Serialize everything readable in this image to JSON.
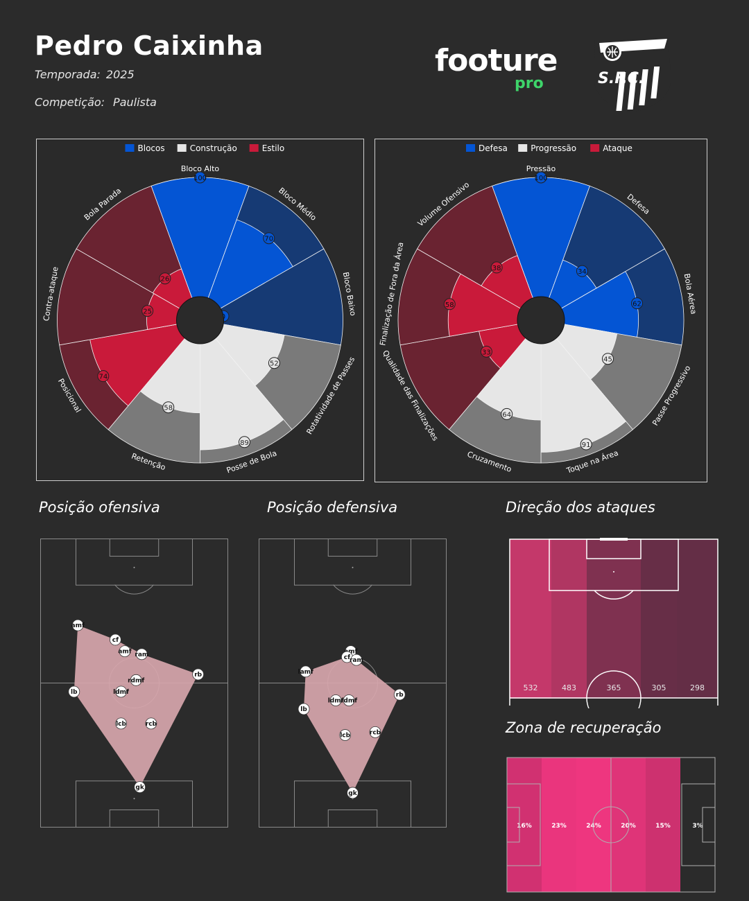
{
  "header": {
    "name": "Pedro Caixinha",
    "season_label": "Temporada:",
    "season_value": "2025",
    "competition_label": "Competição:",
    "competition_value": "Paulista",
    "brand_main": "footure",
    "brand_sub": "pro",
    "club_monogram": "S.F.C."
  },
  "colors": {
    "background": "#2b2b2b",
    "blue": "#0455d4",
    "blue_dark": "#163a74",
    "light": "#e6e6e6",
    "grey": "#7a7a7a",
    "red": "#c91a3a",
    "red_dark": "#6a2331",
    "brand_green": "#3ed46a",
    "shape_pink": "#d7a6ad"
  },
  "sections": {
    "offensive": "Posição ofensiva",
    "defensive": "Posição defensiva",
    "direction": "Direção dos ataques",
    "recovery": "Zona de recuperação"
  },
  "chart_data": [
    {
      "type": "polar_bar",
      "legend": [
        "Blocos",
        "Construção",
        "Estilo"
      ],
      "categories": [
        "Bloco Alto",
        "Bloco Médio",
        "Bloco Baixo",
        "Rotatividade de Passes",
        "Posse de Bola",
        "Retenção",
        "Posicional",
        "Contra-ataque",
        "Bola Parada"
      ],
      "groups": [
        "Blocos",
        "Blocos",
        "Blocos",
        "Construção",
        "Construção",
        "Construção",
        "Estilo",
        "Estilo",
        "Estilo"
      ],
      "values": [
        100,
        70,
        0,
        52,
        89,
        58,
        74,
        25,
        26
      ],
      "ylim": [
        0,
        100
      ]
    },
    {
      "type": "polar_bar",
      "legend": [
        "Defesa",
        "Progressão",
        "Ataque"
      ],
      "categories": [
        "Pressão",
        "Defesa",
        "Bola Aérea",
        "Passe Progressivo",
        "Toque na Área",
        "Cruzamento",
        "Qualidade das Finalizações",
        "Finalização de Fora da Área",
        "Volume Ofensivo"
      ],
      "groups": [
        "Defesa",
        "Defesa",
        "Defesa",
        "Progressão",
        "Progressão",
        "Progressão",
        "Ataque",
        "Ataque",
        "Ataque"
      ],
      "values": [
        100,
        34,
        62,
        45,
        91,
        64,
        33,
        58,
        38
      ],
      "ylim": [
        0,
        100
      ]
    },
    {
      "type": "scatter",
      "title": "Posição ofensiva",
      "x_range": [
        0,
        100
      ],
      "y_range": [
        0,
        100
      ],
      "points": [
        {
          "label": "amf",
          "x": 20,
          "y": 70
        },
        {
          "label": "cf",
          "x": 40,
          "y": 65
        },
        {
          "label": "amf",
          "x": 45,
          "y": 61
        },
        {
          "label": "ram",
          "x": 54,
          "y": 60
        },
        {
          "label": "rb",
          "x": 84,
          "y": 53
        },
        {
          "label": "rdmf",
          "x": 51,
          "y": 51
        },
        {
          "label": "ldmf",
          "x": 43,
          "y": 47
        },
        {
          "label": "lb",
          "x": 18,
          "y": 47
        },
        {
          "label": "lcb",
          "x": 43,
          "y": 36
        },
        {
          "label": "rcb",
          "x": 59,
          "y": 36
        },
        {
          "label": "gk",
          "x": 53,
          "y": 14
        }
      ],
      "hull": [
        "amf",
        "cf",
        "ram",
        "rb",
        "gk",
        "lb"
      ]
    },
    {
      "type": "scatter",
      "title": "Posição defensiva",
      "x_range": [
        0,
        100
      ],
      "y_range": [
        0,
        100
      ],
      "points": [
        {
          "label": "amf",
          "x": 49,
          "y": 61
        },
        {
          "label": "cf",
          "x": 47,
          "y": 59
        },
        {
          "label": "ram",
          "x": 52,
          "y": 58
        },
        {
          "label": "lamf",
          "x": 25,
          "y": 54
        },
        {
          "label": "rb",
          "x": 75,
          "y": 46
        },
        {
          "label": "ldmf",
          "x": 41,
          "y": 44
        },
        {
          "label": "rdmf",
          "x": 48,
          "y": 44
        },
        {
          "label": "lb",
          "x": 24,
          "y": 41
        },
        {
          "label": "rcb",
          "x": 62,
          "y": 33
        },
        {
          "label": "lcb",
          "x": 46,
          "y": 32
        },
        {
          "label": "gk",
          "x": 50,
          "y": 12
        }
      ],
      "hull": [
        "lamf",
        "cf",
        "amf",
        "ram",
        "rb",
        "gk",
        "lb"
      ]
    },
    {
      "type": "heatmap",
      "title": "Direção dos ataques",
      "categories": [
        "1",
        "2",
        "3",
        "4",
        "5"
      ],
      "values": [
        532,
        483,
        365,
        305,
        298
      ],
      "labels": [
        "532",
        "483",
        "365",
        "305",
        "298"
      ]
    },
    {
      "type": "heatmap",
      "title": "Zona de recuperação",
      "categories": [
        "1",
        "2",
        "3",
        "4",
        "5",
        "6"
      ],
      "values": [
        16,
        23,
        24,
        20,
        15,
        3
      ],
      "labels": [
        "16%",
        "23%",
        "24%",
        "20%",
        "15%",
        "3%"
      ]
    }
  ]
}
